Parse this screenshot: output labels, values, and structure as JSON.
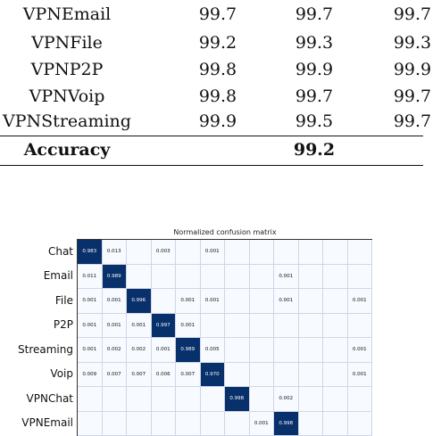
{
  "results_table": {
    "rows": [
      {
        "name": "VPNEmail",
        "c1": "99.7",
        "c2": "99.7",
        "c3": "99.7"
      },
      {
        "name": "VPNFile",
        "c1": "99.2",
        "c2": "99.3",
        "c3": "99.3"
      },
      {
        "name": "VPNP2P",
        "c1": "99.8",
        "c2": "99.9",
        "c3": "99.9"
      },
      {
        "name": "VPNVoip",
        "c1": "99.8",
        "c2": "99.7",
        "c3": "99.7"
      },
      {
        "name": "VPNStreaming",
        "c1": "99.9",
        "c2": "99.5",
        "c3": "99.7"
      }
    ],
    "accuracy_label": "Accuracy",
    "accuracy_value": "99.2"
  },
  "confusion_matrix": {
    "title": "Normalized confusion matrix",
    "row_labels": [
      "Chat",
      "Email",
      "File",
      "P2P",
      "Streaming",
      "Voip",
      "VPNChat",
      "VPNEmail"
    ],
    "cells": [
      [
        "0.983",
        "0.013",
        "",
        "0.003",
        "",
        "0.001",
        "",
        "",
        "",
        "",
        "",
        ""
      ],
      [
        "0.011",
        "0.989",
        "",
        "",
        "",
        "",
        "",
        "",
        "0.001",
        "",
        "",
        ""
      ],
      [
        "0.001",
        "0.001",
        "0.996",
        "",
        "0.001",
        "0.001",
        "",
        "",
        "0.001",
        "",
        "",
        "0.001"
      ],
      [
        "0.001",
        "0.001",
        "0.001",
        "0.997",
        "0.001",
        "",
        "",
        "",
        "",
        "",
        "",
        ""
      ],
      [
        "0.001",
        "0.002",
        "0.002",
        "0.001",
        "0.989",
        "0.005",
        "",
        "",
        "",
        "",
        "",
        "0.001"
      ],
      [
        "0.009",
        "0.007",
        "0.007",
        "0.006",
        "0.007",
        "0.970",
        "",
        "",
        "",
        "",
        "",
        "0.001"
      ],
      [
        "",
        "",
        "",
        "",
        "",
        "",
        "0.998",
        "",
        "0.002",
        "",
        "",
        ""
      ],
      [
        "",
        "",
        "",
        "",
        "",
        "",
        "",
        "0.001",
        "0.998",
        "",
        "",
        ""
      ]
    ],
    "diagonal_color": "#08306b"
  }
}
